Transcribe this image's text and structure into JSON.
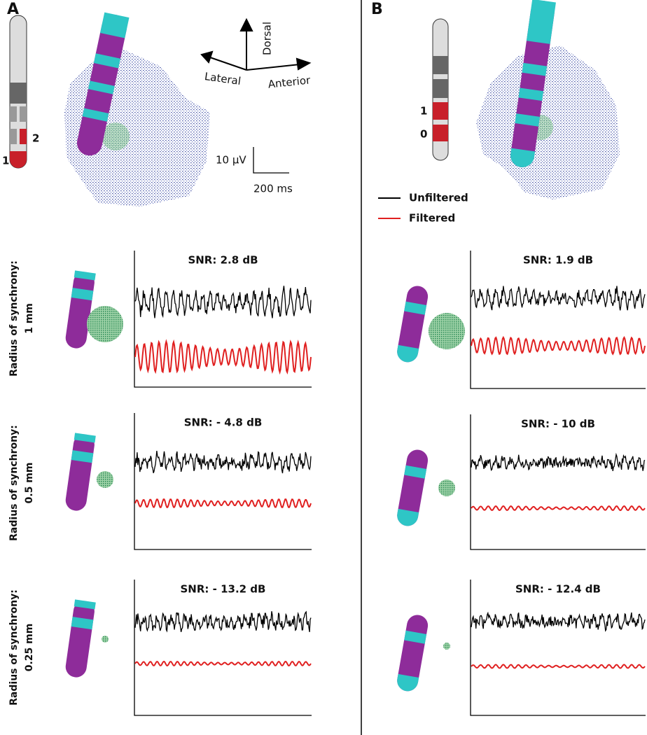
{
  "panels": [
    {
      "label": "A",
      "contact_labels": [
        "1",
        "2"
      ],
      "orientation": {
        "dorsal": "Dorsal",
        "lateral": "Lateral",
        "anterior": "Anterior"
      },
      "scale_bar": {
        "amplitude": "10 µV",
        "time": "200 ms"
      },
      "rows": [
        {
          "snr": "SNR:  2.8 dB"
        },
        {
          "snr": "SNR:  - 4.8 dB"
        },
        {
          "snr": "SNR:  - 13.2 dB"
        }
      ]
    },
    {
      "label": "B",
      "contact_labels": [
        "1",
        "0"
      ],
      "legend": {
        "unfiltered": "Unfiltered",
        "filtered": "Filtered"
      },
      "rows": [
        {
          "snr": "SNR:  1.9 dB"
        },
        {
          "snr": "SNR:  - 10 dB"
        },
        {
          "snr": "SNR:  - 12.4 dB"
        }
      ]
    }
  ],
  "row_labels": [
    {
      "title": "Radius of synchrony:",
      "radius": "1 mm"
    },
    {
      "title": "Radius of synchrony:",
      "radius": "0.5 mm"
    },
    {
      "title": "Radius of synchrony:",
      "radius": "0.25 mm"
    }
  ]
}
